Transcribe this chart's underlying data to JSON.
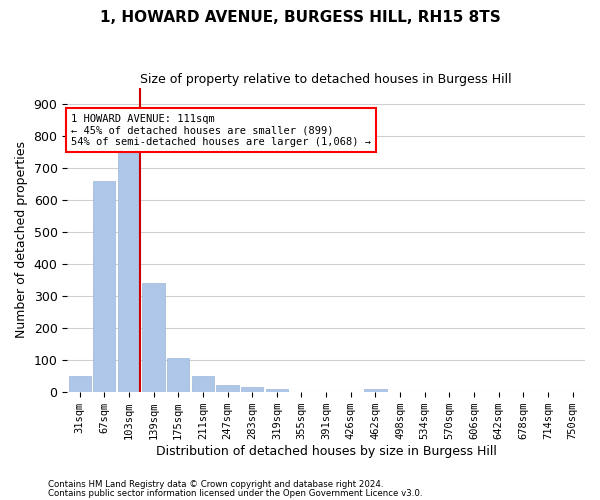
{
  "title": "1, HOWARD AVENUE, BURGESS HILL, RH15 8TS",
  "subtitle": "Size of property relative to detached houses in Burgess Hill",
  "xlabel": "Distribution of detached houses by size in Burgess Hill",
  "ylabel": "Number of detached properties",
  "bar_labels": [
    "31sqm",
    "67sqm",
    "103sqm",
    "139sqm",
    "175sqm",
    "211sqm",
    "247sqm",
    "283sqm",
    "319sqm",
    "355sqm",
    "391sqm",
    "426sqm",
    "462sqm",
    "498sqm",
    "534sqm",
    "570sqm",
    "606sqm",
    "642sqm",
    "678sqm",
    "714sqm",
    "750sqm"
  ],
  "bar_heights": [
    50,
    660,
    750,
    340,
    105,
    48,
    22,
    14,
    8,
    0,
    0,
    0,
    8,
    0,
    0,
    0,
    0,
    0,
    0,
    0,
    0
  ],
  "bar_color": "#aec6e8",
  "bar_edgecolor": "#9ab8d8",
  "grid_color": "#d0d0d0",
  "background_color": "#ffffff",
  "ylim": [
    0,
    950
  ],
  "yticks": [
    0,
    100,
    200,
    300,
    400,
    500,
    600,
    700,
    800,
    900
  ],
  "property_bin_index": 2,
  "red_line_color": "#cc0000",
  "annotation_text": "1 HOWARD AVENUE: 111sqm\n← 45% of detached houses are smaller (899)\n54% of semi-detached houses are larger (1,068) →",
  "footnote1": "Contains HM Land Registry data © Crown copyright and database right 2024.",
  "footnote2": "Contains public sector information licensed under the Open Government Licence v3.0."
}
